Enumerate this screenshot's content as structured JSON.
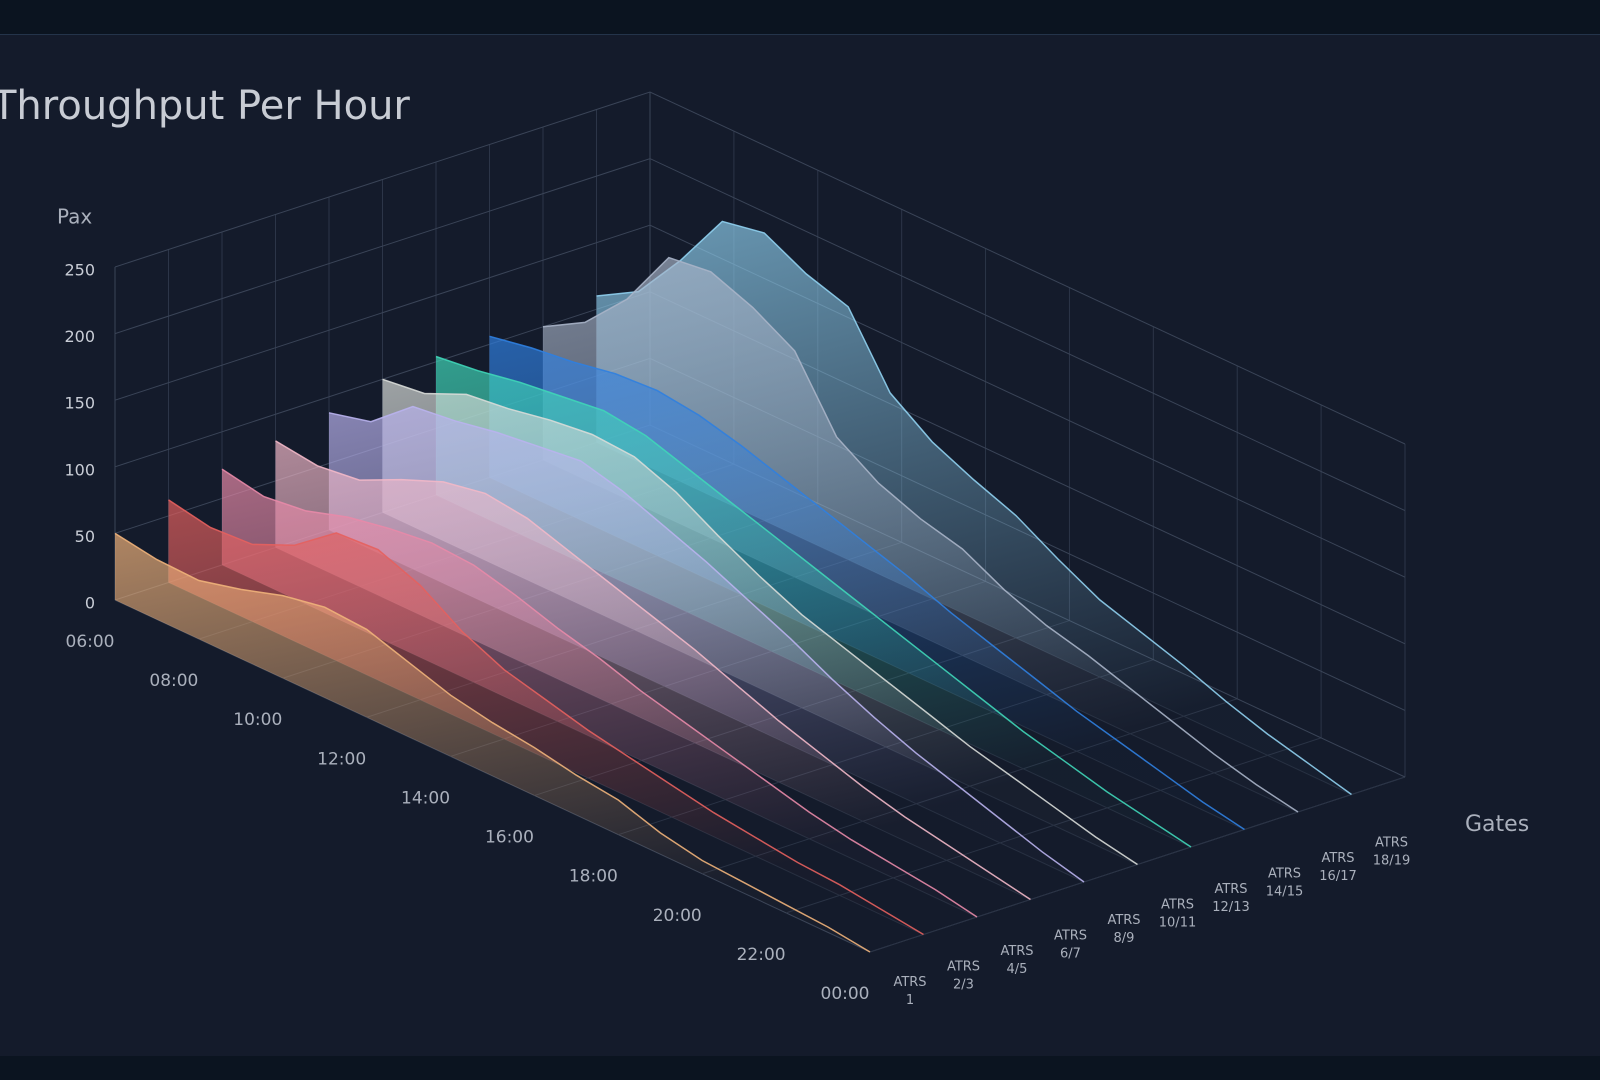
{
  "chart_data": {
    "type": "ridgeline3d",
    "title": "Throughput Per Hour",
    "y_label": "Pax",
    "z_label": "Gates",
    "categories": [
      "06:00",
      null,
      "08:00",
      null,
      "10:00",
      null,
      "12:00",
      null,
      "14:00",
      null,
      "16:00",
      null,
      "18:00",
      null,
      "20:00",
      null,
      "22:00",
      null,
      "00:00"
    ],
    "ylim": [
      0,
      250
    ],
    "yticks": [
      0,
      50,
      100,
      150,
      200,
      250
    ],
    "grid": true,
    "series": [
      {
        "name": "ATRS 1",
        "color": "#f0b27a",
        "values": [
          50,
          45,
          44,
          52,
          62,
          68,
          66,
          56,
          46,
          40,
          36,
          30,
          26,
          16,
          10,
          8,
          6,
          4,
          0
        ]
      },
      {
        "name": "ATRS 2/3",
        "color": "#e5605e",
        "values": [
          62,
          56,
          58,
          72,
          96,
          98,
          86,
          66,
          52,
          44,
          36,
          30,
          24,
          18,
          14,
          10,
          8,
          4,
          0
        ]
      },
      {
        "name": "ATRS 4/5",
        "color": "#e88aa8",
        "values": [
          72,
          66,
          70,
          80,
          86,
          90,
          88,
          80,
          70,
          62,
          52,
          44,
          36,
          28,
          20,
          14,
          10,
          6,
          0
        ]
      },
      {
        "name": "ATRS 6/7",
        "color": "#f2b8c8",
        "values": [
          80,
          76,
          80,
          95,
          108,
          114,
          110,
          100,
          90,
          80,
          70,
          58,
          46,
          36,
          26,
          18,
          12,
          6,
          0
        ]
      },
      {
        "name": "ATRS 8/9",
        "color": "#b9b2ee",
        "values": [
          88,
          96,
          122,
          126,
          132,
          136,
          140,
          132,
          120,
          108,
          94,
          80,
          64,
          50,
          38,
          28,
          18,
          8,
          0
        ]
      },
      {
        "name": "ATRS 10/11",
        "color": "#d8dcd8",
        "values": [
          100,
          104,
          118,
          122,
          128,
          132,
          130,
          118,
          100,
          84,
          70,
          60,
          50,
          40,
          30,
          22,
          14,
          6,
          0
        ]
      },
      {
        "name": "ATRS 12/13",
        "color": "#3fd6b8",
        "values": [
          104,
          108,
          114,
          118,
          122,
          118,
          108,
          98,
          88,
          78,
          68,
          58,
          48,
          38,
          28,
          20,
          12,
          6,
          0
        ]
      },
      {
        "name": "ATRS 14/15",
        "color": "#2f7fe0",
        "values": [
          106,
          112,
          116,
          122,
          124,
          120,
          112,
          102,
          92,
          82,
          72,
          60,
          50,
          40,
          30,
          22,
          14,
          6,
          0
        ]
      },
      {
        "name": "ATRS 16/17",
        "color": "#a8b4c8",
        "values": [
          100,
          118,
          150,
          196,
          200,
          188,
          170,
          120,
          100,
          88,
          80,
          64,
          52,
          44,
          34,
          24,
          14,
          6,
          0
        ]
      },
      {
        "name": "ATRS 18/19",
        "color": "#8fd0f0",
        "values": [
          110,
          128,
          166,
          210,
          216,
          200,
          190,
          140,
          118,
          104,
          92,
          74,
          58,
          48,
          38,
          26,
          16,
          8,
          0
        ]
      }
    ]
  }
}
